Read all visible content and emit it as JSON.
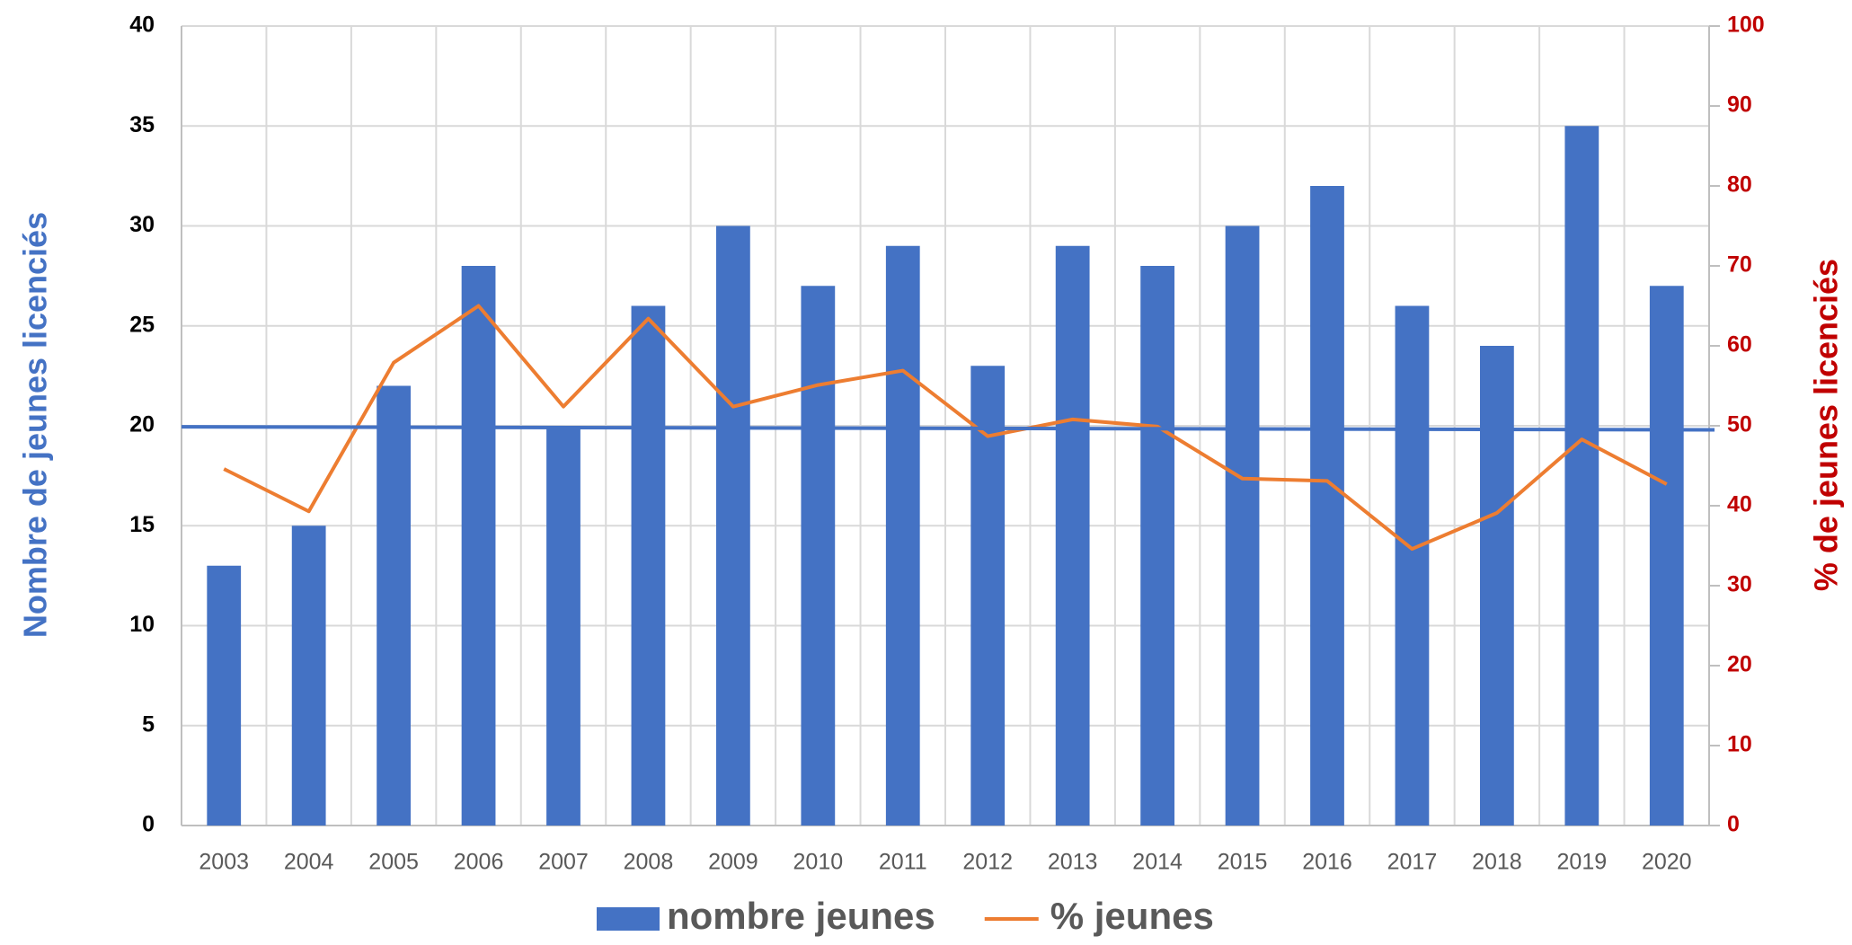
{
  "chart_data": {
    "type": "bar",
    "categories": [
      "2003",
      "2004",
      "2005",
      "2006",
      "2007",
      "2008",
      "2009",
      "2010",
      "2011",
      "2012",
      "2013",
      "2014",
      "2015",
      "2016",
      "2017",
      "2018",
      "2019",
      "2020"
    ],
    "ylabel": "Nombre de jeunes licenciés",
    "y2label": "% de jeunes licenciés",
    "series": [
      {
        "name": "nombre jeunes",
        "color": "#4472c4",
        "type": "bar",
        "values": [
          13,
          15,
          22,
          28,
          20,
          26,
          30,
          27,
          29,
          23,
          29,
          28,
          30,
          32,
          26,
          24,
          35,
          27
        ]
      },
      {
        "name": "% jeunes",
        "color": "#ed7d31",
        "type": "line",
        "axis": "y2",
        "values": [
          44.6,
          39.3,
          57.9,
          65,
          52.4,
          63.4,
          52.4,
          55.1,
          56.9,
          48.7,
          50.8,
          49.9,
          43.4,
          43.1,
          34.6,
          39.1,
          48.3,
          42.7
        ]
      }
    ],
    "reference_line": {
      "values": [
        19.95,
        19.8
      ],
      "color": "#4472c4"
    },
    "ylim": [
      0,
      40
    ],
    "yticks": [
      0,
      5,
      10,
      15,
      20,
      25,
      30,
      35,
      40
    ],
    "y2lim": [
      0,
      100
    ],
    "y2ticks": [
      0,
      10,
      20,
      30,
      40,
      50,
      60,
      70,
      80,
      90,
      100
    ],
    "grid": true,
    "legend": "bottom"
  }
}
